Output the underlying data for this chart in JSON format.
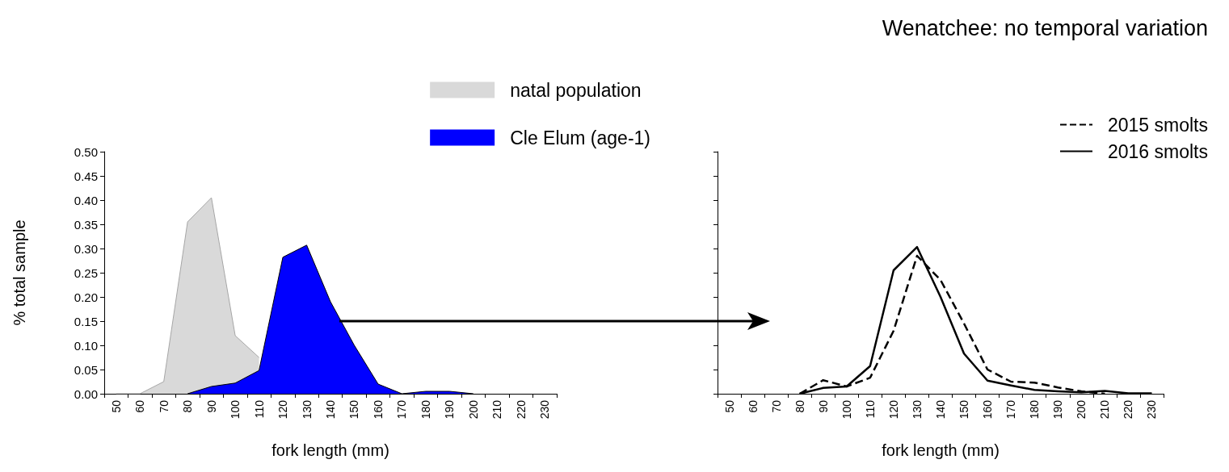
{
  "chart_data": [
    {
      "type": "area",
      "xlabel": "fork length (mm)",
      "ylabel": "% total sample",
      "categories": [
        "50",
        "60",
        "70",
        "80",
        "90",
        "100",
        "110",
        "120",
        "130",
        "140",
        "150",
        "160",
        "170",
        "180",
        "190",
        "200",
        "210",
        "220",
        "230"
      ],
      "series": [
        {
          "name": "natal population",
          "color": "#d9d9d9",
          "values": [
            0,
            0,
            0.025,
            0.355,
            0.405,
            0.12,
            0.075,
            null,
            null,
            null,
            null,
            null,
            null,
            null,
            null,
            null,
            null,
            null,
            null
          ]
        },
        {
          "name": "Cle Elum (age-1)",
          "color": "#0000ff",
          "values": [
            null,
            null,
            null,
            0,
            0.015,
            0.022,
            0.048,
            0.282,
            0.307,
            0.19,
            0.1,
            0.02,
            0,
            0.005,
            0.005,
            0,
            null,
            null,
            null
          ]
        }
      ],
      "ylim": [
        0,
        0.5
      ],
      "yticks": [
        {
          "value": 0,
          "label": "0.00"
        },
        {
          "value": 0.05,
          "label": "0.05"
        },
        {
          "value": 0.1,
          "label": "0.10"
        },
        {
          "value": 0.15,
          "label": "0.15"
        },
        {
          "value": 0.2,
          "label": "0.20"
        },
        {
          "value": 0.25,
          "label": "0.25"
        },
        {
          "value": 0.3,
          "label": "0.30"
        },
        {
          "value": 0.35,
          "label": "0.35"
        },
        {
          "value": 0.4,
          "label": "0.40"
        },
        {
          "value": 0.45,
          "label": "0.45"
        },
        {
          "value": 0.5,
          "label": "0.50"
        }
      ],
      "legend": "top right",
      "marker": "none"
    },
    {
      "type": "line",
      "title": "Wenatchee: no temporal variation",
      "xlabel": "fork length (mm)",
      "categories": [
        "50",
        "60",
        "70",
        "80",
        "90",
        "100",
        "110",
        "120",
        "130",
        "140",
        "150",
        "160",
        "170",
        "180",
        "190",
        "200",
        "210",
        "220",
        "230"
      ],
      "series": [
        {
          "name": "2015 smolts",
          "color": "#000000",
          "line_style": "dashed",
          "values": [
            null,
            null,
            null,
            0,
            0.028,
            0.015,
            0.033,
            0.13,
            0.285,
            0.235,
            0.145,
            0.05,
            0.025,
            0.023,
            0.013,
            0.005,
            0,
            null,
            null
          ]
        },
        {
          "name": "2016 smolts",
          "color": "#000000",
          "line_style": "solid",
          "values": [
            null,
            null,
            null,
            0,
            0.012,
            0.015,
            0.057,
            0.255,
            0.303,
            0.2,
            0.083,
            0.027,
            0.017,
            0.008,
            0.005,
            0.003,
            0.006,
            0.001,
            0.001
          ]
        }
      ],
      "ylim": [
        0,
        0.5
      ],
      "yticks": [
        {
          "value": 0,
          "label": null
        },
        {
          "value": 0.05,
          "label": null
        },
        {
          "value": 0.1,
          "label": null
        },
        {
          "value": 0.15,
          "label": null
        },
        {
          "value": 0.2,
          "label": null
        },
        {
          "value": 0.25,
          "label": null
        },
        {
          "value": 0.3,
          "label": null
        },
        {
          "value": 0.35,
          "label": null
        },
        {
          "value": 0.4,
          "label": null
        },
        {
          "value": 0.45,
          "label": null
        },
        {
          "value": 0.5,
          "label": null
        }
      ],
      "tick_labels": "x",
      "legend": "top right",
      "marker": "none"
    }
  ]
}
